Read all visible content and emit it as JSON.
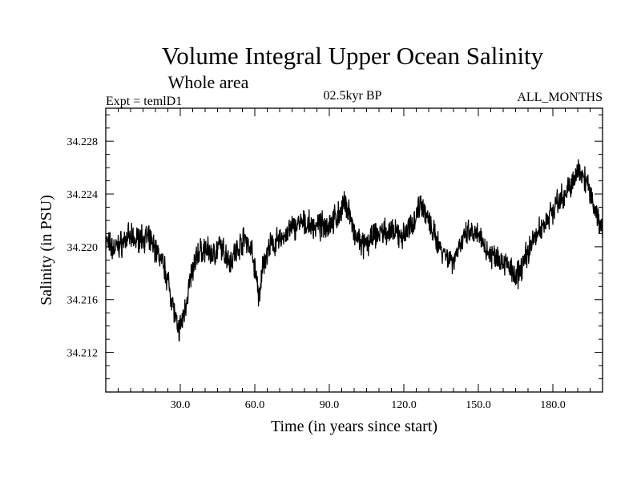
{
  "header": {
    "title": "Volume Integral Upper Ocean Salinity",
    "subtitle": "Whole area",
    "expt": "Expt = temlD1",
    "period": "02.5kyr BP",
    "months": "ALL_MONTHS"
  },
  "chart_data": {
    "type": "line",
    "title": "Volume Integral Upper Ocean Salinity",
    "subtitle": "Whole area",
    "xlabel": "Time (in years since start)",
    "ylabel": "Salinity (in PSU)",
    "xlim": [
      0,
      200
    ],
    "ylim": [
      34.209,
      34.2305
    ],
    "x_ticks": [
      30,
      60,
      90,
      120,
      150,
      180
    ],
    "x_tick_labels": [
      "30.0",
      "60.0",
      "90.0",
      "120.0",
      "150.0",
      "180.0"
    ],
    "y_ticks": [
      34.212,
      34.216,
      34.22,
      34.224,
      34.228
    ],
    "y_tick_labels": [
      "34.212",
      "34.216",
      "34.220",
      "34.224",
      "34.228"
    ],
    "grid": false,
    "series": [
      {
        "name": "Salinity",
        "color": "#000000",
        "noise_amplitude": 0.0012,
        "x": [
          0,
          3,
          6,
          9,
          12,
          15,
          18,
          21,
          24,
          27,
          29,
          31,
          34,
          37,
          40,
          43,
          46,
          50,
          53,
          56,
          59,
          61,
          62,
          63,
          66,
          70,
          74,
          78,
          82,
          86,
          90,
          93,
          96,
          98,
          100,
          104,
          108,
          112,
          116,
          120,
          124,
          127,
          130,
          134,
          138,
          140,
          142,
          146,
          150,
          154,
          158,
          162,
          165,
          168,
          172,
          176,
          180,
          184,
          188,
          191,
          193,
          196,
          199,
          200
        ],
        "y": [
          34.2205,
          34.2198,
          34.2202,
          34.2207,
          34.2205,
          34.2208,
          34.2204,
          34.2195,
          34.2182,
          34.2158,
          34.2135,
          34.2145,
          34.2175,
          34.2195,
          34.2198,
          34.2194,
          34.22,
          34.219,
          34.2198,
          34.2208,
          34.2195,
          34.2172,
          34.2158,
          34.2185,
          34.22,
          34.2205,
          34.2212,
          34.2218,
          34.2216,
          34.2215,
          34.2218,
          34.2222,
          34.2232,
          34.2228,
          34.2208,
          34.22,
          34.2208,
          34.2212,
          34.221,
          34.2208,
          34.222,
          34.2235,
          34.2218,
          34.2202,
          34.2192,
          34.219,
          34.22,
          34.221,
          34.2208,
          34.2196,
          34.2192,
          34.2186,
          34.2175,
          34.2188,
          34.2205,
          34.2216,
          34.2228,
          34.2238,
          34.2248,
          34.226,
          34.2252,
          34.2235,
          34.2218,
          34.221
        ]
      }
    ]
  }
}
